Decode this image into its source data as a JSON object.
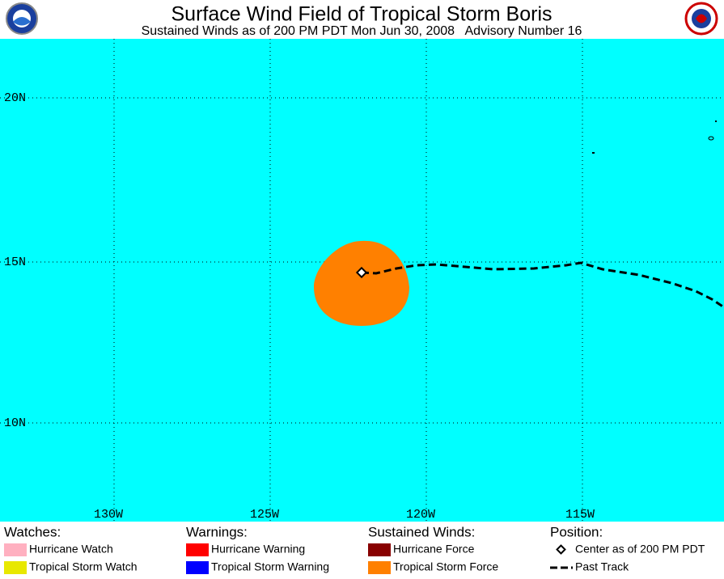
{
  "header": {
    "title": "Surface Wind Field of Tropical Storm Boris",
    "subtitle": "Sustained Winds as of 200 PM PDT Mon Jun 30, 2008   Advisory Number 16"
  },
  "map": {
    "latitude_labels": [
      "20N",
      "15N",
      "10N"
    ],
    "longitude_labels": [
      "130W",
      "125W",
      "120W",
      "115W"
    ]
  },
  "legend": [
    {
      "heading": "Watches:",
      "items": [
        "Hurricane Watch",
        "Tropical Storm Watch"
      ]
    },
    {
      "heading": "Warnings:",
      "items": [
        "Hurricane Warning",
        "Tropical Storm Warning"
      ]
    },
    {
      "heading": "Sustained Winds:",
      "items": [
        "Hurricane Force",
        "Tropical Storm Force"
      ]
    },
    {
      "heading": "Position:",
      "items": [
        "Center as of 200 PM PDT",
        "Past Track"
      ]
    }
  ]
}
